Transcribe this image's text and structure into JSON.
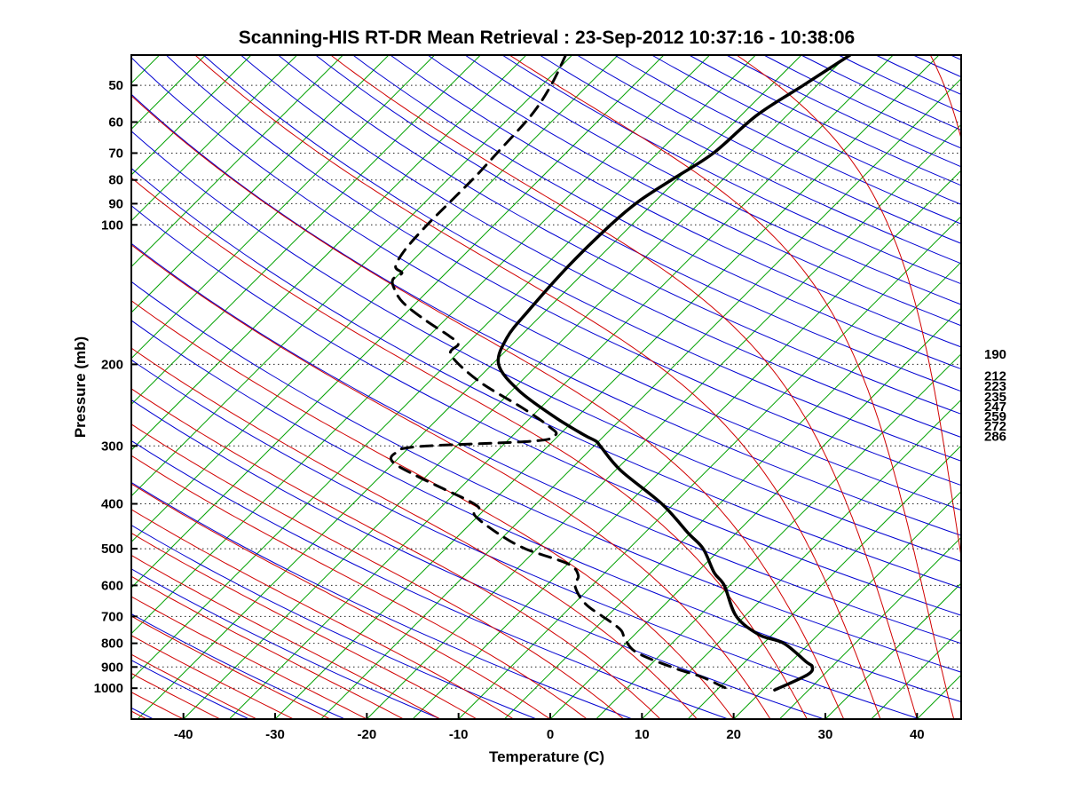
{
  "title": "Scanning-HIS RT-DR Mean Retrieval : 23-Sep-2012 10:37:16 - 10:38:06",
  "chart_data": {
    "type": "line",
    "variant": "skew-t-log-p",
    "title": "Scanning-HIS RT-DR Mean Retrieval : 23-Sep-2012 10:37:16 - 10:38:06",
    "xlabel": "Temperature (C)",
    "ylabel": "Pressure (mb)",
    "grid": "dotted horizontal isobars at labeled pressures",
    "legend_position": "none",
    "pressure_range": [
      43,
      1166
    ],
    "x_ticks": [
      -40,
      -30,
      -20,
      -10,
      0,
      10,
      20,
      30,
      40
    ],
    "pressure_ticks": [
      50,
      60,
      70,
      80,
      90,
      100,
      200,
      300,
      400,
      500,
      600,
      700,
      800,
      900,
      1000
    ],
    "right_pressure_labels": [
      190,
      212,
      223,
      235,
      247,
      259,
      272,
      286
    ],
    "skew": "isotherms slanted 45 degrees up to the right",
    "colors": {
      "isotherm": "#00A000",
      "dry_adiabat": "#0000D1",
      "moist_adiabat": "#D10000",
      "isobar_grid": "#222222",
      "profile": "#000000"
    },
    "background_lines": {
      "isotherms_C": {
        "min": -120,
        "max": 45,
        "step": 5
      },
      "dry_adiabats_theta_K": {
        "min": 220,
        "max": 600,
        "step": 10
      },
      "moist_adiabats_startT_C": {
        "min": -56,
        "max": 72,
        "step": 4
      }
    },
    "series": [
      {
        "name": "temperature",
        "label": "Retrieved temperature profile",
        "style": "solid",
        "color": "#000000",
        "points_p_T": [
          [
            43,
            -39.7
          ],
          [
            50,
            -41.5
          ],
          [
            58,
            -43.3
          ],
          [
            70,
            -43.9
          ],
          [
            79,
            -45.4
          ],
          [
            89,
            -46.8
          ],
          [
            100,
            -47.3
          ],
          [
            123,
            -47.4
          ],
          [
            153,
            -46.9
          ],
          [
            175,
            -46.3
          ],
          [
            200,
            -44.3
          ],
          [
            228,
            -39.2
          ],
          [
            260,
            -32.4
          ],
          [
            284,
            -27.3
          ],
          [
            293,
            -25.3
          ],
          [
            301,
            -24.2
          ],
          [
            339,
            -19.4
          ],
          [
            400,
            -11.3
          ],
          [
            462,
            -5.3
          ],
          [
            500,
            -1.9
          ],
          [
            563,
            1.9
          ],
          [
            600,
            4.4
          ],
          [
            700,
            9.1
          ],
          [
            767,
            13.6
          ],
          [
            800,
            17.2
          ],
          [
            876,
            21.6
          ],
          [
            900,
            22.9
          ],
          [
            936,
            23.2
          ],
          [
            1009,
            21.3
          ]
        ]
      },
      {
        "name": "dewpoint",
        "label": "Retrieved dewpoint profile",
        "style": "dashed",
        "color": "#000000",
        "points_p_T": [
          [
            43,
            -70.7
          ],
          [
            50,
            -69.0
          ],
          [
            58,
            -67.9
          ],
          [
            70,
            -67.5
          ],
          [
            79,
            -67.3
          ],
          [
            89,
            -67.3
          ],
          [
            100,
            -67.3
          ],
          [
            113,
            -67.0
          ],
          [
            123,
            -66.2
          ],
          [
            127,
            -64.8
          ],
          [
            131,
            -65.1
          ],
          [
            137,
            -64.0
          ],
          [
            147,
            -61.5
          ],
          [
            160,
            -57.3
          ],
          [
            174,
            -52.7
          ],
          [
            181,
            -50.9
          ],
          [
            191,
            -50.5
          ],
          [
            218,
            -44.5
          ],
          [
            249,
            -36.8
          ],
          [
            272,
            -32.1
          ],
          [
            284,
            -30.4
          ],
          [
            293,
            -32.2
          ],
          [
            301,
            -44.2
          ],
          [
            311,
            -45.9
          ],
          [
            325,
            -45.2
          ],
          [
            347,
            -41.3
          ],
          [
            371,
            -36.8
          ],
          [
            391,
            -33.2
          ],
          [
            408,
            -30.8
          ],
          [
            423,
            -30.5
          ],
          [
            462,
            -26.1
          ],
          [
            500,
            -21.3
          ],
          [
            539,
            -15.0
          ],
          [
            571,
            -12.6
          ],
          [
            602,
            -11.8
          ],
          [
            658,
            -8.7
          ],
          [
            718,
            -4.1
          ],
          [
            751,
            -1.9
          ],
          [
            785,
            -0.5
          ],
          [
            838,
            2.2
          ],
          [
            904,
            7.9
          ],
          [
            944,
            11.8
          ],
          [
            987,
            14.9
          ],
          [
            1009,
            16.4
          ]
        ]
      }
    ]
  }
}
